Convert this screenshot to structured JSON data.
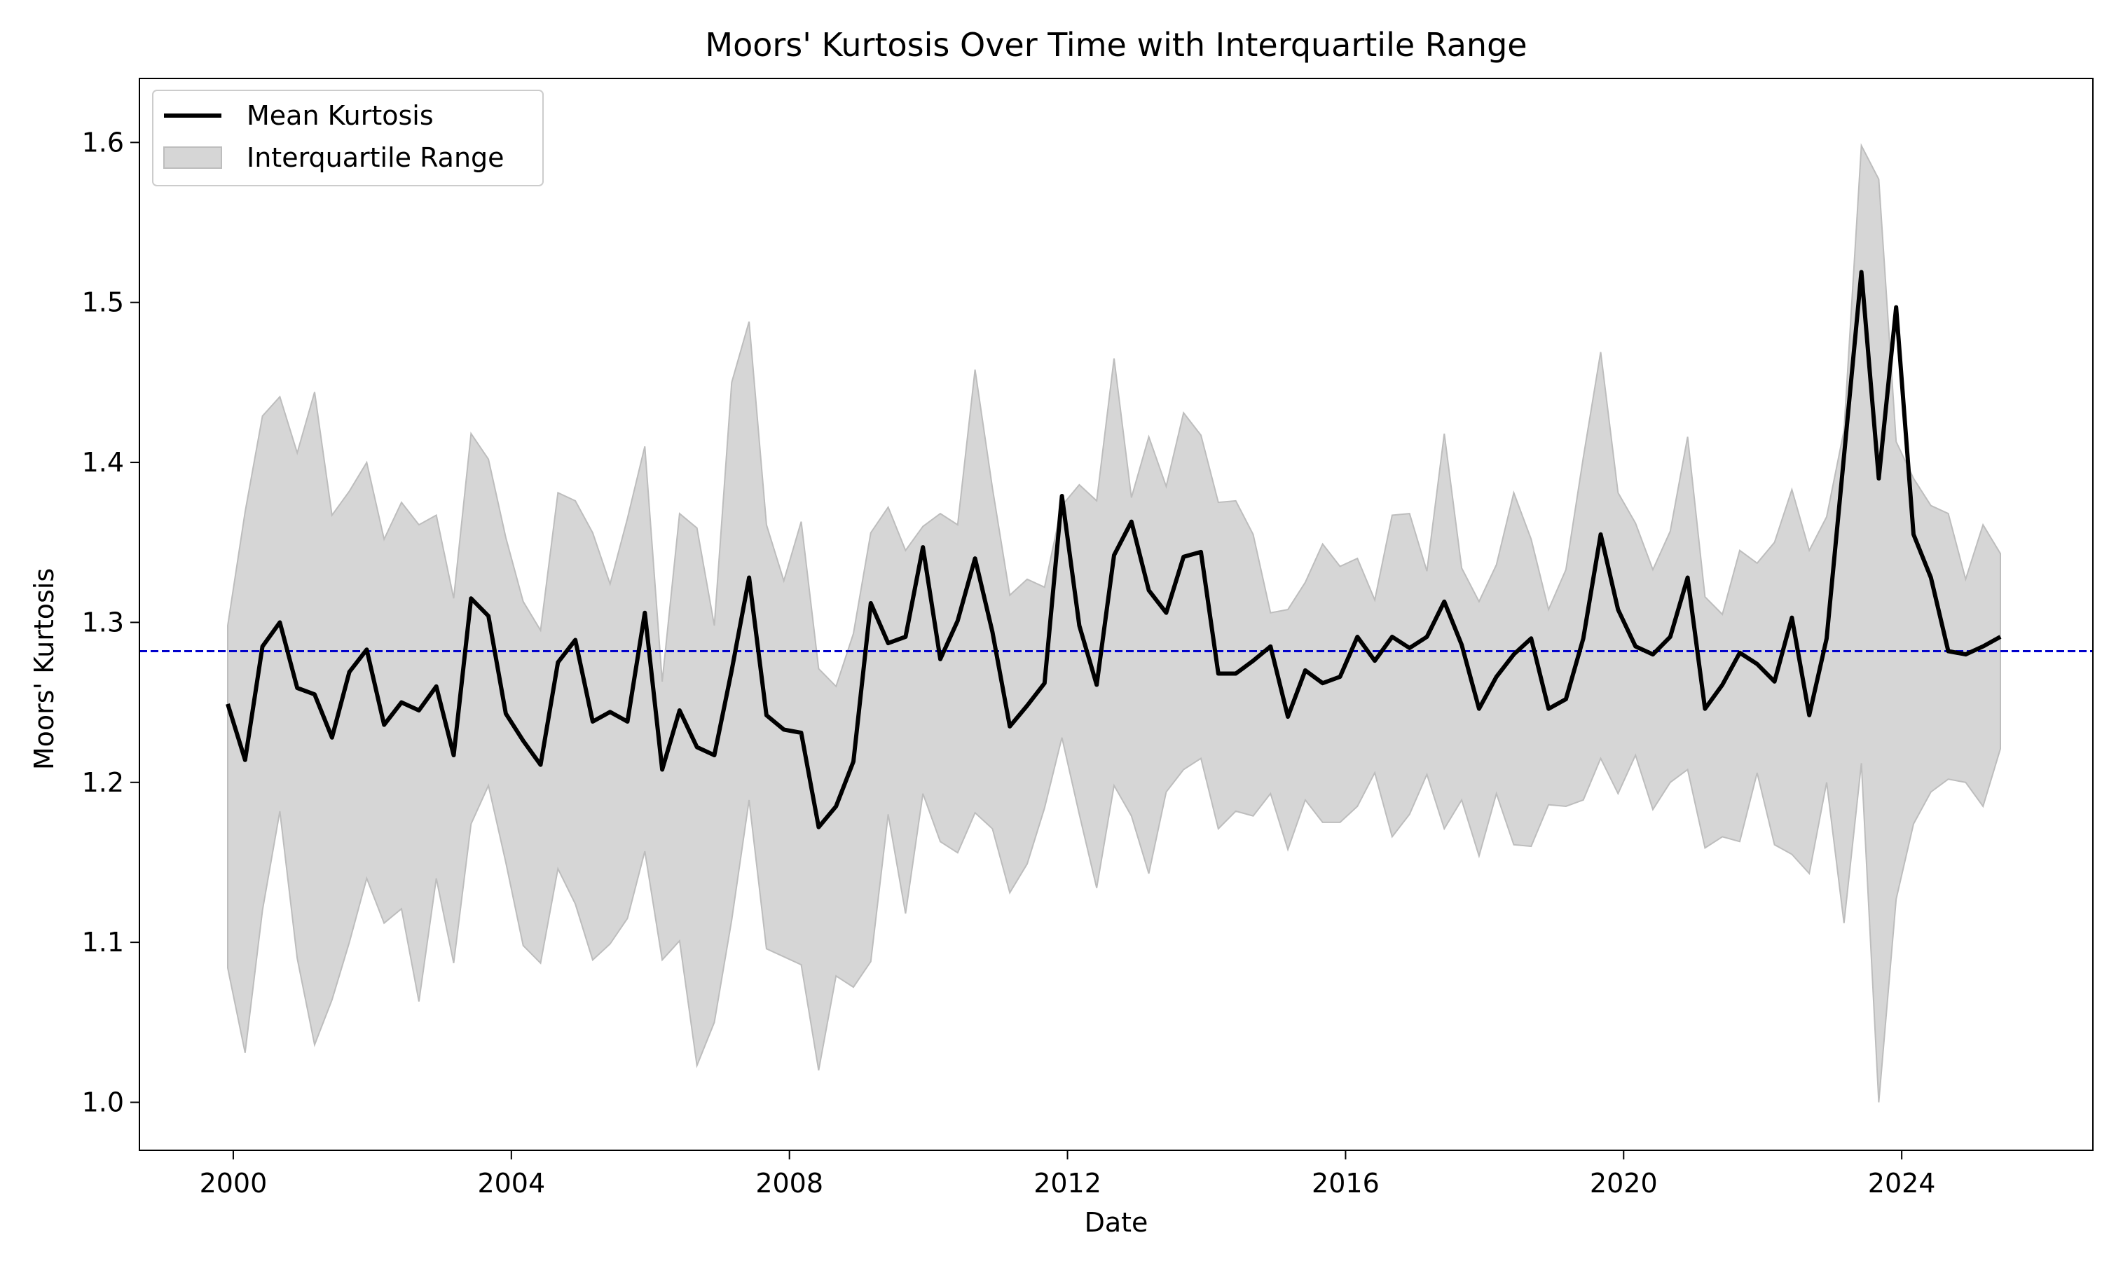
{
  "chart_data": {
    "type": "line",
    "title": "Moors' Kurtosis Over Time with Interquartile Range",
    "xlabel": "Date",
    "ylabel": "Moors' Kurtosis",
    "xlim": [
      1998.65,
      2026.75
    ],
    "ylim": [
      0.97,
      1.64
    ],
    "x_ticks": [
      2000,
      2004,
      2008,
      2012,
      2016,
      2020,
      2024
    ],
    "x_tick_labels": [
      "2000",
      "2004",
      "2008",
      "2012",
      "2016",
      "2020",
      "2024"
    ],
    "y_ticks": [
      1.0,
      1.1,
      1.2,
      1.3,
      1.4,
      1.5,
      1.6
    ],
    "y_tick_labels": [
      "1.0",
      "1.1",
      "1.2",
      "1.3",
      "1.4",
      "1.5",
      "1.6"
    ],
    "grid": false,
    "legend_position": "top-left",
    "legend": [
      {
        "label": "Mean Kurtosis",
        "kind": "line",
        "color": "#000000"
      },
      {
        "label": "Interquartile Range",
        "kind": "patch",
        "color": "#d6d6d6"
      }
    ],
    "reference_line": {
      "y": 1.282,
      "color": "#0000cc",
      "style": "dashed"
    },
    "dates": [
      "2000-Q1",
      "2000-Q2",
      "2000-Q3",
      "2000-Q4",
      "2001-Q1",
      "2001-Q2",
      "2001-Q3",
      "2001-Q4",
      "2002-Q1",
      "2002-Q2",
      "2002-Q3",
      "2002-Q4",
      "2003-Q1",
      "2003-Q2",
      "2003-Q3",
      "2003-Q4",
      "2004-Q1",
      "2004-Q2",
      "2004-Q3",
      "2004-Q4",
      "2005-Q1",
      "2005-Q2",
      "2005-Q3",
      "2005-Q4",
      "2006-Q1",
      "2006-Q2",
      "2006-Q3",
      "2006-Q4",
      "2007-Q1",
      "2007-Q2",
      "2007-Q3",
      "2007-Q4",
      "2008-Q1",
      "2008-Q2",
      "2008-Q3",
      "2008-Q4",
      "2009-Q1",
      "2009-Q2",
      "2009-Q3",
      "2009-Q4",
      "2010-Q1",
      "2010-Q2",
      "2010-Q3",
      "2010-Q4",
      "2011-Q1",
      "2011-Q2",
      "2011-Q3",
      "2011-Q4",
      "2012-Q1",
      "2012-Q2",
      "2012-Q3",
      "2012-Q4",
      "2013-Q1",
      "2013-Q2",
      "2013-Q3",
      "2013-Q4",
      "2014-Q1",
      "2014-Q2",
      "2014-Q3",
      "2014-Q4",
      "2015-Q1",
      "2015-Q2",
      "2015-Q3",
      "2015-Q4",
      "2016-Q1",
      "2016-Q2",
      "2016-Q3",
      "2016-Q4",
      "2017-Q1",
      "2017-Q2",
      "2017-Q3",
      "2017-Q4",
      "2018-Q1",
      "2018-Q2",
      "2018-Q3",
      "2018-Q4",
      "2019-Q1",
      "2019-Q2",
      "2019-Q3",
      "2019-Q4",
      "2020-Q1",
      "2020-Q2",
      "2020-Q3",
      "2020-Q4",
      "2021-Q1",
      "2021-Q2",
      "2021-Q3",
      "2021-Q4",
      "2022-Q1",
      "2022-Q2",
      "2022-Q3",
      "2022-Q4",
      "2023-Q1",
      "2023-Q2",
      "2023-Q3",
      "2023-Q4",
      "2024-Q1",
      "2024-Q2",
      "2024-Q3",
      "2024-Q4",
      "2025-Q1",
      "2025-Q2"
    ],
    "x": [
      1999.92,
      2000.17,
      2000.42,
      2000.67,
      2000.92,
      2001.17,
      2001.42,
      2001.67,
      2001.92,
      2002.17,
      2002.42,
      2002.67,
      2002.92,
      2003.17,
      2003.42,
      2003.67,
      2003.92,
      2004.17,
      2004.42,
      2004.67,
      2004.92,
      2005.17,
      2005.42,
      2005.67,
      2005.92,
      2006.17,
      2006.42,
      2006.67,
      2006.92,
      2007.17,
      2007.42,
      2007.67,
      2007.92,
      2008.17,
      2008.42,
      2008.67,
      2008.92,
      2009.17,
      2009.42,
      2009.67,
      2009.92,
      2010.17,
      2010.42,
      2010.67,
      2010.92,
      2011.17,
      2011.42,
      2011.67,
      2011.92,
      2012.17,
      2012.42,
      2012.67,
      2012.92,
      2013.17,
      2013.42,
      2013.67,
      2013.92,
      2014.17,
      2014.42,
      2014.67,
      2014.92,
      2015.17,
      2015.42,
      2015.67,
      2015.92,
      2016.17,
      2016.42,
      2016.67,
      2016.92,
      2017.17,
      2017.42,
      2017.67,
      2017.92,
      2018.17,
      2018.42,
      2018.67,
      2018.92,
      2019.17,
      2019.42,
      2019.67,
      2019.92,
      2020.17,
      2020.42,
      2020.67,
      2020.92,
      2021.17,
      2021.42,
      2021.67,
      2021.92,
      2022.17,
      2022.42,
      2022.67,
      2022.92,
      2023.17,
      2023.42,
      2023.67,
      2023.92,
      2024.17,
      2024.42,
      2024.67,
      2024.92,
      2025.17,
      2025.42
    ],
    "series": [
      {
        "name": "Mean Kurtosis",
        "color": "#000000",
        "values": [
          1.249,
          1.214,
          1.285,
          1.3,
          1.259,
          1.255,
          1.228,
          1.269,
          1.283,
          1.236,
          1.25,
          1.245,
          1.26,
          1.217,
          1.315,
          1.304,
          1.243,
          1.226,
          1.211,
          1.275,
          1.289,
          1.238,
          1.244,
          1.238,
          1.306,
          1.208,
          1.245,
          1.222,
          1.217,
          1.27,
          1.328,
          1.242,
          1.233,
          1.231,
          1.172,
          1.185,
          1.213,
          1.312,
          1.287,
          1.291,
          1.347,
          1.277,
          1.301,
          1.34,
          1.294,
          1.235,
          1.248,
          1.262,
          1.379,
          1.298,
          1.261,
          1.342,
          1.363,
          1.32,
          1.306,
          1.341,
          1.344,
          1.268,
          1.268,
          1.276,
          1.285,
          1.241,
          1.27,
          1.262,
          1.266,
          1.291,
          1.276,
          1.291,
          1.284,
          1.291,
          1.313,
          1.286,
          1.246,
          1.266,
          1.28,
          1.29,
          1.246,
          1.252,
          1.29,
          1.355,
          1.308,
          1.285,
          1.28,
          1.291,
          1.328,
          1.246,
          1.261,
          1.281,
          1.274,
          1.263,
          1.303,
          1.242,
          1.29,
          1.404,
          1.519,
          1.39,
          1.497,
          1.355,
          1.328,
          1.282,
          1.28,
          1.285,
          1.291
        ]
      },
      {
        "name": "Interquartile Range",
        "color": "#d6d6d6",
        "upper": [
          1.298,
          1.369,
          1.429,
          1.441,
          1.406,
          1.444,
          1.367,
          1.382,
          1.4,
          1.352,
          1.375,
          1.361,
          1.367,
          1.315,
          1.418,
          1.402,
          1.353,
          1.313,
          1.295,
          1.381,
          1.376,
          1.356,
          1.324,
          1.365,
          1.41,
          1.263,
          1.368,
          1.359,
          1.298,
          1.45,
          1.488,
          1.361,
          1.326,
          1.363,
          1.271,
          1.26,
          1.293,
          1.356,
          1.372,
          1.345,
          1.36,
          1.368,
          1.361,
          1.458,
          1.384,
          1.317,
          1.327,
          1.322,
          1.373,
          1.386,
          1.376,
          1.465,
          1.378,
          1.416,
          1.385,
          1.431,
          1.417,
          1.375,
          1.376,
          1.355,
          1.306,
          1.308,
          1.325,
          1.349,
          1.335,
          1.34,
          1.314,
          1.367,
          1.368,
          1.332,
          1.418,
          1.334,
          1.313,
          1.336,
          1.381,
          1.352,
          1.308,
          1.333,
          1.403,
          1.469,
          1.381,
          1.362,
          1.333,
          1.357,
          1.416,
          1.316,
          1.305,
          1.345,
          1.337,
          1.35,
          1.383,
          1.345,
          1.366,
          1.42,
          1.598,
          1.577,
          1.413,
          1.39,
          1.373,
          1.368,
          1.327,
          1.361,
          1.343
        ],
        "lower": [
          1.084,
          1.031,
          1.12,
          1.182,
          1.09,
          1.036,
          1.064,
          1.1,
          1.14,
          1.112,
          1.121,
          1.063,
          1.14,
          1.087,
          1.174,
          1.198,
          1.15,
          1.098,
          1.087,
          1.146,
          1.124,
          1.089,
          1.099,
          1.115,
          1.157,
          1.089,
          1.101,
          1.023,
          1.05,
          1.114,
          1.189,
          1.096,
          1.091,
          1.086,
          1.02,
          1.079,
          1.072,
          1.088,
          1.18,
          1.118,
          1.193,
          1.163,
          1.156,
          1.181,
          1.171,
          1.131,
          1.149,
          1.184,
          1.228,
          1.18,
          1.134,
          1.198,
          1.179,
          1.143,
          1.194,
          1.208,
          1.215,
          1.171,
          1.182,
          1.179,
          1.193,
          1.158,
          1.189,
          1.175,
          1.175,
          1.185,
          1.206,
          1.166,
          1.18,
          1.205,
          1.171,
          1.189,
          1.154,
          1.193,
          1.161,
          1.16,
          1.186,
          1.185,
          1.189,
          1.215,
          1.193,
          1.217,
          1.183,
          1.2,
          1.208,
          1.159,
          1.166,
          1.163,
          1.206,
          1.161,
          1.155,
          1.143,
          1.2,
          1.112,
          1.212,
          1.0,
          1.127,
          1.174,
          1.194,
          1.202,
          1.2,
          1.185,
          1.221
        ]
      }
    ]
  }
}
